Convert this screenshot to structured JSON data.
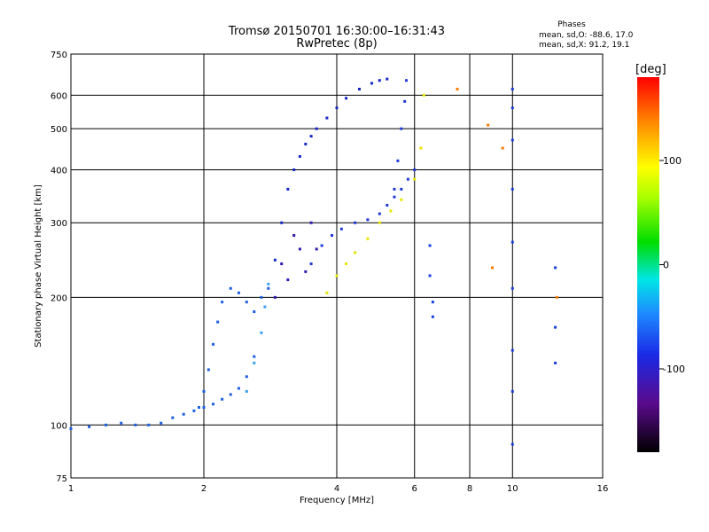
{
  "chart_data": {
    "type": "scatter",
    "title": "Tromsø 20150701 16:30:00–16:31:43",
    "subtitle": "RwPretec (8p)",
    "xlabel": "Frequency [MHz]",
    "ylabel": "Stationary phase Virtual Height [km]",
    "x_scale": "log",
    "y_scale": "log",
    "xlim": [
      1,
      16
    ],
    "ylim": [
      75,
      750
    ],
    "x_ticks": [
      1,
      2,
      4,
      6,
      8,
      10,
      16
    ],
    "y_ticks": [
      75,
      100,
      200,
      300,
      400,
      500,
      600,
      750
    ],
    "grid": true,
    "stats": {
      "heading": "Phases",
      "line_o": "mean, sd,O: -88.6, 17.0",
      "line_x": "mean, sd,X:  91.2, 19.1"
    },
    "colorbar": {
      "label": "[deg]",
      "range": [
        -180,
        180
      ],
      "ticks": [
        100,
        0,
        -100
      ]
    },
    "series": [
      {
        "color": "#1a5fe0",
        "x": [
          1.0,
          1.1,
          1.2,
          1.3,
          1.4,
          1.5,
          1.6,
          1.7,
          1.8,
          1.9,
          2.0,
          2.1,
          2.2,
          2.3,
          2.4,
          2.5,
          2.6
        ],
        "y": [
          98,
          99,
          100,
          101,
          100,
          100,
          101,
          104,
          106,
          108,
          110,
          112,
          115,
          118,
          122,
          130,
          145
        ]
      },
      {
        "color": "#1a5fe0",
        "x": [
          1.95,
          2.0,
          2.05,
          2.1,
          2.15,
          2.2,
          2.3,
          2.4,
          2.5,
          2.6,
          2.7,
          2.8
        ],
        "y": [
          110,
          120,
          135,
          155,
          175,
          195,
          210,
          205,
          195,
          185,
          200,
          210
        ]
      },
      {
        "color": "#3c9ef0",
        "x": [
          2.5,
          2.6,
          2.7,
          2.75,
          2.8
        ],
        "y": [
          120,
          140,
          165,
          190,
          215
        ]
      },
      {
        "color": "#1428c8",
        "x": [
          2.9,
          3.0,
          3.1,
          3.2,
          3.3,
          3.4,
          3.5,
          3.6,
          3.8,
          4.0,
          4.2,
          4.5,
          4.8,
          5.0,
          5.2
        ],
        "y": [
          245,
          300,
          360,
          400,
          430,
          460,
          480,
          500,
          530,
          560,
          590,
          620,
          640,
          650,
          655
        ]
      },
      {
        "color": "#2d18b0",
        "x": [
          2.9,
          3.0,
          3.1,
          3.2,
          3.3,
          3.4,
          3.5,
          3.6
        ],
        "y": [
          200,
          240,
          220,
          280,
          260,
          230,
          300,
          260
        ]
      },
      {
        "color": "#1e3ad8",
        "x": [
          3.5,
          3.7,
          3.9,
          4.1,
          4.4,
          4.7,
          5.0,
          5.2,
          5.4,
          5.6,
          5.8,
          6.0
        ],
        "y": [
          240,
          265,
          280,
          290,
          300,
          305,
          315,
          330,
          345,
          360,
          380,
          400
        ]
      },
      {
        "color": "#1e3ad8",
        "x": [
          5.4,
          5.5,
          5.6,
          5.7,
          5.75
        ],
        "y": [
          360,
          420,
          500,
          580,
          650
        ]
      },
      {
        "color": "#e6e600",
        "x": [
          3.8,
          4.0,
          4.2,
          4.4,
          4.7,
          5.0,
          5.3,
          5.6,
          6.0,
          6.2,
          6.3
        ],
        "y": [
          205,
          225,
          240,
          255,
          275,
          300,
          320,
          340,
          380,
          450,
          600
        ]
      },
      {
        "color": "#1a3fe0",
        "x": [
          6.5,
          6.5,
          6.6,
          6.6,
          10.0,
          10.0,
          10.0,
          10.0,
          10.0,
          10.0,
          10.0,
          10.0,
          10.0,
          12.5,
          12.5,
          12.5
        ],
        "y": [
          265,
          225,
          195,
          180,
          620,
          560,
          470,
          360,
          270,
          210,
          150,
          120,
          90,
          235,
          170,
          140
        ]
      },
      {
        "color": "#ff7a00",
        "x": [
          7.5,
          8.8,
          9.5,
          9.0,
          12.6
        ],
        "y": [
          620,
          510,
          450,
          235,
          200
        ]
      }
    ]
  }
}
